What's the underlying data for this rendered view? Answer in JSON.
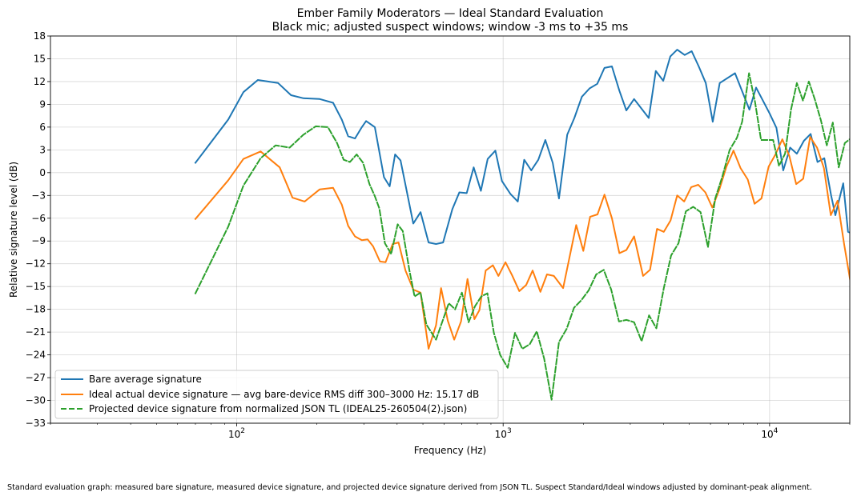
{
  "chart_data": {
    "type": "line",
    "title": "Ember Family Moderators — Ideal Standard Evaluation",
    "subtitle": "Black mic; adjusted suspect windows; window -3 ms to +35 ms",
    "xlabel": "Frequency (Hz)",
    "ylabel": "Relative signature level (dB)",
    "xscale": "log",
    "xlim": [
      20,
      20000
    ],
    "ylim": [
      -33,
      18
    ],
    "grid": true,
    "legend_position": "lower-left",
    "x_ticks": [
      {
        "value": 100,
        "base": "10",
        "exp": "2"
      },
      {
        "value": 1000,
        "base": "10",
        "exp": "3"
      },
      {
        "value": 10000,
        "base": "10",
        "exp": "4"
      }
    ],
    "y_ticks": [
      18,
      15,
      12,
      9,
      6,
      3,
      0,
      -3,
      -6,
      -9,
      -12,
      -15,
      -18,
      -21,
      -24,
      -27,
      -30,
      -33
    ],
    "series": [
      {
        "name": "Bare average signature",
        "color": "#1f77b4",
        "dash": "solid",
        "points": [
          [
            70,
            1.3
          ],
          [
            93,
            7
          ],
          [
            106,
            10.6
          ],
          [
            120,
            12.2
          ],
          [
            143,
            11.8
          ],
          [
            160,
            10.2
          ],
          [
            178,
            9.8
          ],
          [
            205,
            9.7
          ],
          [
            230,
            9.2
          ],
          [
            248,
            7
          ],
          [
            262,
            4.8
          ],
          [
            278,
            4.5
          ],
          [
            295,
            6
          ],
          [
            306,
            6.8
          ],
          [
            330,
            6
          ],
          [
            357,
            -0.6
          ],
          [
            375,
            -1.8
          ],
          [
            393,
            2.4
          ],
          [
            412,
            1.6
          ],
          [
            460,
            -6.7
          ],
          [
            490,
            -5.2
          ],
          [
            525,
            -9.2
          ],
          [
            560,
            -9.4
          ],
          [
            595,
            -9.2
          ],
          [
            645,
            -4.8
          ],
          [
            685,
            -2.6
          ],
          [
            730,
            -2.7
          ],
          [
            775,
            0.7
          ],
          [
            825,
            -2.4
          ],
          [
            875,
            1.8
          ],
          [
            935,
            2.9
          ],
          [
            990,
            -1.1
          ],
          [
            1065,
            -2.8
          ],
          [
            1135,
            -3.8
          ],
          [
            1200,
            1.7
          ],
          [
            1275,
            0.3
          ],
          [
            1355,
            1.7
          ],
          [
            1440,
            4.3
          ],
          [
            1535,
            1.3
          ],
          [
            1620,
            -3.4
          ],
          [
            1740,
            5
          ],
          [
            1850,
            7.2
          ],
          [
            1975,
            10
          ],
          [
            2110,
            11.1
          ],
          [
            2255,
            11.7
          ],
          [
            2400,
            13.8
          ],
          [
            2560,
            14
          ],
          [
            2730,
            10.8
          ],
          [
            2900,
            8.2
          ],
          [
            3100,
            9.7
          ],
          [
            3520,
            7.2
          ],
          [
            3740,
            13.4
          ],
          [
            3990,
            12.1
          ],
          [
            4240,
            15.3
          ],
          [
            4500,
            16.2
          ],
          [
            4800,
            15.5
          ],
          [
            5100,
            16
          ],
          [
            5420,
            14
          ],
          [
            5760,
            11.8
          ],
          [
            6120,
            6.7
          ],
          [
            6500,
            11.8
          ],
          [
            7420,
            13.1
          ],
          [
            8400,
            8.3
          ],
          [
            8900,
            11.2
          ],
          [
            9440,
            9.5
          ],
          [
            10000,
            7.8
          ],
          [
            10610,
            5.9
          ],
          [
            11250,
            0.3
          ],
          [
            11940,
            3.3
          ],
          [
            12660,
            2.5
          ],
          [
            13450,
            4.2
          ],
          [
            14260,
            5.1
          ],
          [
            15130,
            1.4
          ],
          [
            16050,
            1.9
          ],
          [
            17020,
            -3
          ],
          [
            17660,
            -5.6
          ],
          [
            18900,
            -1.4
          ],
          [
            19700,
            -7.8
          ],
          [
            20700,
            -8.1
          ]
        ]
      },
      {
        "name": "Ideal actual device signature — avg bare-device RMS diff 300–3000 Hz: 15.17 dB",
        "color": "#ff7f0e",
        "dash": "solid",
        "points": [
          [
            70,
            -6.1
          ],
          [
            93,
            -1
          ],
          [
            106,
            1.8
          ],
          [
            123,
            2.8
          ],
          [
            145,
            0.7
          ],
          [
            162,
            -3.3
          ],
          [
            180,
            -3.8
          ],
          [
            205,
            -2.2
          ],
          [
            230,
            -2
          ],
          [
            248,
            -4.2
          ],
          [
            262,
            -7
          ],
          [
            278,
            -8.4
          ],
          [
            295,
            -8.9
          ],
          [
            310,
            -8.8
          ],
          [
            325,
            -9.7
          ],
          [
            345,
            -11.7
          ],
          [
            362,
            -11.8
          ],
          [
            385,
            -9.4
          ],
          [
            405,
            -9.2
          ],
          [
            430,
            -12.9
          ],
          [
            460,
            -15.4
          ],
          [
            490,
            -15.8
          ],
          [
            525,
            -23.2
          ],
          [
            560,
            -20.1
          ],
          [
            585,
            -15.2
          ],
          [
            620,
            -19.5
          ],
          [
            655,
            -22
          ],
          [
            695,
            -19.6
          ],
          [
            735,
            -14
          ],
          [
            780,
            -19.3
          ],
          [
            815,
            -18.1
          ],
          [
            860,
            -12.9
          ],
          [
            915,
            -12.2
          ],
          [
            960,
            -13.6
          ],
          [
            1020,
            -11.8
          ],
          [
            1080,
            -13.5
          ],
          [
            1150,
            -15.6
          ],
          [
            1220,
            -14.8
          ],
          [
            1290,
            -12.9
          ],
          [
            1380,
            -15.7
          ],
          [
            1460,
            -13.4
          ],
          [
            1550,
            -13.6
          ],
          [
            1680,
            -15.2
          ],
          [
            1880,
            -6.9
          ],
          [
            2000,
            -10.3
          ],
          [
            2120,
            -5.8
          ],
          [
            2260,
            -5.5
          ],
          [
            2400,
            -2.9
          ],
          [
            2560,
            -6
          ],
          [
            2730,
            -10.6
          ],
          [
            2900,
            -10.2
          ],
          [
            3100,
            -8.4
          ],
          [
            3350,
            -13.6
          ],
          [
            3560,
            -12.8
          ],
          [
            3780,
            -7.4
          ],
          [
            4010,
            -7.8
          ],
          [
            4250,
            -6.3
          ],
          [
            4500,
            -3
          ],
          [
            4780,
            -3.8
          ],
          [
            5080,
            -1.9
          ],
          [
            5400,
            -1.6
          ],
          [
            5740,
            -2.6
          ],
          [
            6100,
            -4.6
          ],
          [
            6480,
            -2.2
          ],
          [
            6890,
            0.8
          ],
          [
            7320,
            2.9
          ],
          [
            7780,
            0.6
          ],
          [
            8280,
            -0.9
          ],
          [
            8780,
            -4.1
          ],
          [
            9320,
            -3.4
          ],
          [
            9920,
            0.8
          ],
          [
            10520,
            2.4
          ],
          [
            11170,
            4.4
          ],
          [
            11860,
            2.2
          ],
          [
            12590,
            -1.5
          ],
          [
            13370,
            -0.8
          ],
          [
            14200,
            4.7
          ],
          [
            15070,
            3.3
          ],
          [
            15990,
            0.6
          ],
          [
            16970,
            -5.6
          ],
          [
            17990,
            -3.7
          ],
          [
            19040,
            -9.4
          ],
          [
            20210,
            -14.8
          ],
          [
            21420,
            -16.6
          ]
        ]
      },
      {
        "name": "Projected device signature from normalized JSON TL (IDEAL25-260504(2).json)",
        "color": "#2ca02c",
        "dash": "dashed",
        "points": [
          [
            70,
            -15.9
          ],
          [
            93,
            -7.1
          ],
          [
            106,
            -1.7
          ],
          [
            123,
            1.9
          ],
          [
            140,
            3.6
          ],
          [
            158,
            3.3
          ],
          [
            178,
            5
          ],
          [
            198,
            6.1
          ],
          [
            220,
            6
          ],
          [
            238,
            3.9
          ],
          [
            252,
            1.7
          ],
          [
            266,
            1.4
          ],
          [
            282,
            2.4
          ],
          [
            298,
            1.3
          ],
          [
            315,
            -1.5
          ],
          [
            330,
            -3.1
          ],
          [
            343,
            -4.7
          ],
          [
            360,
            -9.3
          ],
          [
            380,
            -10.7
          ],
          [
            402,
            -6.8
          ],
          [
            420,
            -7.7
          ],
          [
            445,
            -12.9
          ],
          [
            465,
            -16.3
          ],
          [
            490,
            -15.8
          ],
          [
            515,
            -20
          ],
          [
            560,
            -22
          ],
          [
            590,
            -19.7
          ],
          [
            625,
            -17.2
          ],
          [
            660,
            -18
          ],
          [
            700,
            -15.8
          ],
          [
            742,
            -19.7
          ],
          [
            784,
            -17.6
          ],
          [
            828,
            -16.3
          ],
          [
            873,
            -15.9
          ],
          [
            923,
            -21.1
          ],
          [
            975,
            -24
          ],
          [
            1040,
            -25.7
          ],
          [
            1108,
            -21.1
          ],
          [
            1180,
            -23.2
          ],
          [
            1258,
            -22.6
          ],
          [
            1337,
            -20.9
          ],
          [
            1425,
            -24.5
          ],
          [
            1520,
            -29.9
          ],
          [
            1620,
            -22.3
          ],
          [
            1730,
            -20.6
          ],
          [
            1845,
            -17.8
          ],
          [
            1965,
            -16.8
          ],
          [
            2095,
            -15.5
          ],
          [
            2235,
            -13.4
          ],
          [
            2385,
            -12.8
          ],
          [
            2545,
            -15.4
          ],
          [
            2720,
            -19.6
          ],
          [
            2905,
            -19.4
          ],
          [
            3100,
            -19.7
          ],
          [
            3310,
            -22.2
          ],
          [
            3530,
            -18.8
          ],
          [
            3760,
            -20.5
          ],
          [
            4010,
            -15.2
          ],
          [
            4270,
            -10.9
          ],
          [
            4550,
            -9.3
          ],
          [
            4850,
            -5.1
          ],
          [
            5170,
            -4.5
          ],
          [
            5510,
            -5.2
          ],
          [
            5870,
            -9.8
          ],
          [
            6250,
            -3.4
          ],
          [
            6650,
            -0.5
          ],
          [
            7080,
            3
          ],
          [
            7540,
            4.6
          ],
          [
            7890,
            6.7
          ],
          [
            8370,
            13.1
          ],
          [
            8820,
            9.3
          ],
          [
            9290,
            4.3
          ],
          [
            9780,
            4.3
          ],
          [
            10310,
            4.3
          ],
          [
            10850,
            0.9
          ],
          [
            11430,
            2.5
          ],
          [
            12030,
            8.3
          ],
          [
            12660,
            11.8
          ],
          [
            13340,
            9.5
          ],
          [
            14040,
            12
          ],
          [
            14800,
            9.6
          ],
          [
            15580,
            6.9
          ],
          [
            16400,
            3.6
          ],
          [
            17270,
            6.6
          ],
          [
            18180,
            0.7
          ],
          [
            19160,
            3.9
          ],
          [
            20170,
            4.5
          ]
        ]
      }
    ]
  },
  "caption": "Standard evaluation graph: measured bare signature, measured device signature, and projected device signature derived from JSON TL. Suspect Standard/Ideal windows adjusted by dominant-peak alignment."
}
